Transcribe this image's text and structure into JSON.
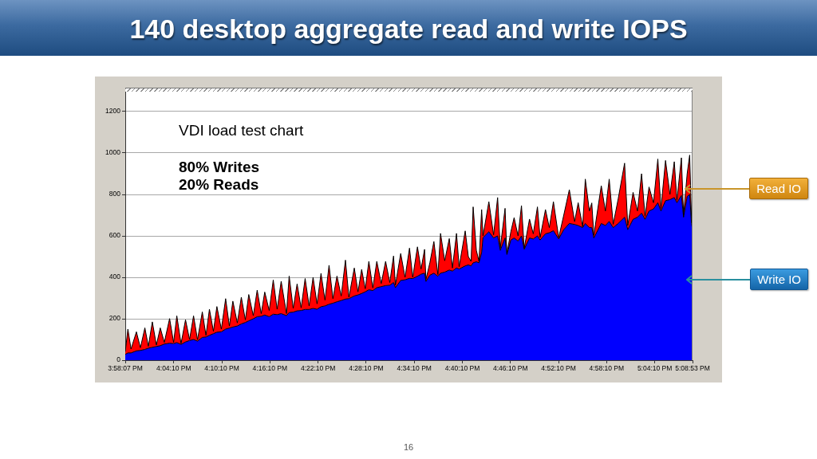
{
  "chart_data": {
    "type": "area",
    "title": "140 desktop aggregate read and write IOPS",
    "annotations": [
      "VDI load test chart",
      "80% Writes",
      "20% Reads",
      "16"
    ],
    "stacked": true,
    "grid": "y",
    "xlim": [
      15.968611,
      17.148056
    ],
    "xticks": [
      {
        "value": 15.968611,
        "label": "3:58:07 PM"
      },
      {
        "value": 16.069444,
        "label": "4:04:10 PM"
      },
      {
        "value": 16.169444,
        "label": "4:10:10 PM"
      },
      {
        "value": 16.269444,
        "label": "4:16:10 PM"
      },
      {
        "value": 16.369444,
        "label": "4:22:10 PM"
      },
      {
        "value": 16.469444,
        "label": "4:28:10 PM"
      },
      {
        "value": 16.569444,
        "label": "4:34:10 PM"
      },
      {
        "value": 16.669444,
        "label": "4:40:10 PM"
      },
      {
        "value": 16.769444,
        "label": "4:46:10 PM"
      },
      {
        "value": 16.869444,
        "label": "4:52:10 PM"
      },
      {
        "value": 16.969444,
        "label": "4:58:10 PM"
      },
      {
        "value": 17.069444,
        "label": "5:04:10 PM"
      },
      {
        "value": 17.148056,
        "label": "5:08:53 PM"
      }
    ],
    "ylim": [
      0,
      1300
    ],
    "yticks": [
      0,
      200,
      400,
      600,
      800,
      1000,
      1200
    ],
    "x": [
      15.968611,
      15.9741,
      15.9806,
      15.9918,
      16.0001,
      16.0094,
      16.0166,
      16.0249,
      16.0333,
      16.0414,
      16.0498,
      16.0608,
      16.0691,
      16.0758,
      16.0846,
      16.0939,
      16.1023,
      16.1106,
      16.1188,
      16.1288,
      16.1364,
      16.1436,
      16.1519,
      16.1591,
      16.1684,
      16.1773,
      16.1851,
      16.1923,
      16.2016,
      16.2099,
      16.2183,
      16.2254,
      16.2348,
      16.2429,
      16.2513,
      16.2586,
      16.2679,
      16.2763,
      16.2844,
      16.2928,
      16.3038,
      16.3094,
      16.3178,
      16.3259,
      16.3343,
      16.3426,
      16.3509,
      16.3591,
      16.3674,
      16.3756,
      16.3839,
      16.3923,
      16.4004,
      16.4088,
      16.4176,
      16.4264,
      16.4336,
      16.4448,
      16.4524,
      16.4601,
      16.4676,
      16.4751,
      16.4834,
      16.4916,
      16.5008,
      16.5099,
      16.5186,
      16.5264,
      16.5303,
      16.5413,
      16.5503,
      16.5596,
      16.5663,
      16.5761,
      16.5836,
      16.5909,
      16.5938,
      16.6019,
      16.6103,
      16.6186,
      16.6241,
      16.6328,
      16.6423,
      16.6489,
      16.6573,
      16.6628,
      16.6754,
      16.6819,
      16.6876,
      16.6919,
      16.6986,
      16.7041,
      16.7096,
      16.7124,
      16.7246,
      16.7344,
      16.7428,
      16.7483,
      16.7583,
      16.7621,
      16.7703,
      16.7771,
      16.7853,
      16.7924,
      16.7981,
      16.8091,
      16.8169,
      16.8256,
      16.8311,
      16.8423,
      16.8503,
      16.8588,
      16.8698,
      16.8803,
      16.8919,
      16.9029,
      16.9103,
      16.9196,
      16.9251,
      16.9336,
      16.9386,
      16.9428,
      16.9583,
      16.9669,
      16.9748,
      16.9831,
      16.9936,
      17.0068,
      17.0134,
      17.0244,
      17.0336,
      17.0421,
      17.0493,
      17.0576,
      17.0669,
      17.0759,
      17.0824,
      17.0919,
      17.1011,
      17.1101,
      17.1156,
      17.1249,
      17.1294,
      17.1369,
      17.1421,
      17.1459,
      17.148056
    ],
    "series": [
      {
        "name": "Write IO",
        "color": "#0000ff",
        "values": [
          28,
          35,
          35,
          45,
          47,
          52,
          58,
          62,
          66,
          70,
          78,
          82,
          80,
          85,
          76,
          88,
          95,
          100,
          92,
          110,
          112,
          120,
          128,
          135,
          137,
          150,
          155,
          160,
          165,
          175,
          182,
          190,
          200,
          210,
          212,
          218,
          210,
          222,
          220,
          225,
          215,
          230,
          232,
          238,
          240,
          245,
          245,
          250,
          246,
          258,
          262,
          270,
          275,
          282,
          288,
          295,
          297,
          310,
          315,
          322,
          330,
          340,
          336,
          350,
          355,
          360,
          362,
          375,
          350,
          385,
          388,
          395,
          394,
          405,
          415,
          420,
          380,
          410,
          420,
          405,
          420,
          425,
          435,
          430,
          445,
          440,
          455,
          460,
          455,
          470,
          475,
          470,
          520,
          592,
          620,
          590,
          600,
          530,
          590,
          510,
          580,
          590,
          575,
          600,
          535,
          590,
          585,
          600,
          580,
          610,
          615,
          625,
          585,
          630,
          660,
          655,
          650,
          640,
          660,
          640,
          640,
          590,
          660,
          650,
          670,
          640,
          660,
          690,
          630,
          680,
          690,
          710,
          680,
          720,
          730,
          760,
          720,
          770,
          775,
          785,
          760,
          795,
          690,
          790,
          800,
          660,
          631
        ]
      },
      {
        "name": "Read IO",
        "color": "#ff0000",
        "values": [
          13,
          115,
          19,
          92,
          13,
          104,
          9,
          123,
          7,
          86,
          8,
          119,
          6,
          129,
          4,
          107,
          5,
          114,
          7,
          123,
          8,
          126,
          12,
          124,
          13,
          147,
          10,
          125,
          15,
          129,
          13,
          127,
          15,
          128,
          13,
          111,
          30,
          165,
          26,
          156,
          10,
          176,
          18,
          130,
          13,
          149,
          17,
          150,
          26,
          161,
          28,
          188,
          22,
          124,
          22,
          188,
          7,
          135,
          15,
          116,
          15,
          137,
          13,
          127,
          15,
          117,
          13,
          128,
          12,
          130,
          12,
          146,
          6,
          142,
          25,
          115,
          10,
          60,
          153,
          8,
          192,
          55,
          152,
          15,
          167,
          11,
          169,
          40,
          22,
          270,
          55,
          7,
          207,
          8,
          145,
          15,
          185,
          11,
          143,
          5,
          40,
          98,
          25,
          146,
          6,
          91,
          25,
          140,
          12,
          117,
          25,
          140,
          7,
          70,
          163,
          14,
          110,
          4,
          214,
          80,
          119,
          13,
          182,
          70,
          204,
          16,
          120,
          261,
          20,
          130,
          30,
          190,
          15,
          116,
          30,
          211,
          13,
          194,
          25,
          173,
          12,
          182,
          11,
          110,
          190,
          22,
          13
        ]
      }
    ]
  }
}
